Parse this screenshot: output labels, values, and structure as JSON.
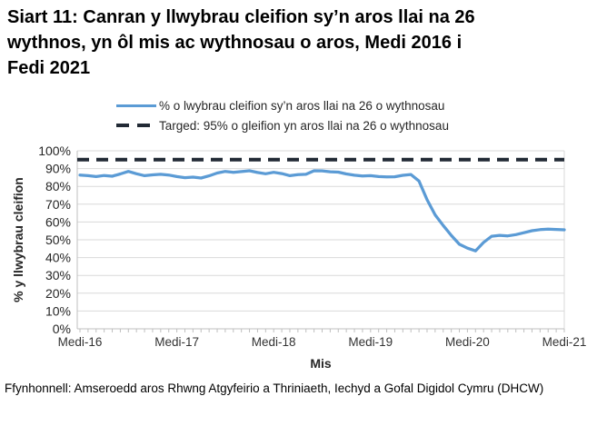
{
  "title_lines": [
    "Siart 11: Canran y llwybrau cleifion sy’n aros llai na 26",
    "wythnos, yn ôl mis ac wythnosau o aros, Medi 2016 i",
    "Fedi 2021"
  ],
  "legend": {
    "series_label": "% o lwybrau cleifion sy’n aros llai na 26 o wythnosau",
    "target_label": "Targed: 95% o gleifion yn aros llai na 26 o wythnosau"
  },
  "footer": "Ffynhonnell: Amseroedd aros Rhwng Atgyfeirio a Thriniaeth, Iechyd a Gofal Digidol Cymru (DHCW)",
  "colors": {
    "series": "#5B9BD5",
    "target": "#222a35",
    "grid": "#d9d9d9",
    "axis": "#bfbfbf",
    "title_text": "#000000"
  },
  "chart_data": {
    "type": "line",
    "title": "",
    "xlabel": "Mis",
    "ylabel": "% y llwybrau cleifion",
    "ylim": [
      0,
      100
    ],
    "grid": "horizontal",
    "legend_position": "top",
    "x_start": "Medi-16",
    "x_end": "Medi-21",
    "ytick_labels": [
      "0%",
      "10%",
      "20%",
      "30%",
      "40%",
      "50%",
      "60%",
      "70%",
      "80%",
      "90%",
      "100%"
    ],
    "xtick_labels": [
      "Medi-16",
      "Medi-17",
      "Medi-18",
      "Medi-19",
      "Medi-20",
      "Medi-21"
    ],
    "target": {
      "name": "Targed: 95% o gleifion yn aros llai na 26 o wythnosau",
      "value": 95
    },
    "series": [
      {
        "name": "% o lwybrau cleifion sy’n aros llai na 26 o wythnosau",
        "values": [
          86.4,
          86.0,
          85.5,
          86.1,
          85.7,
          87.0,
          88.4,
          87.1,
          86.0,
          86.5,
          86.8,
          86.4,
          85.5,
          84.9,
          85.2,
          84.7,
          85.9,
          87.5,
          88.4,
          87.9,
          88.3,
          88.8,
          87.8,
          87.1,
          87.9,
          87.2,
          86.0,
          86.6,
          86.8,
          88.8,
          88.7,
          88.2,
          88.0,
          87.0,
          86.3,
          85.8,
          86.0,
          85.5,
          85.3,
          85.4,
          86.2,
          86.7,
          83.0,
          72.5,
          64.0,
          58.0,
          52.5,
          47.5,
          45.3,
          43.8,
          48.5,
          52.0,
          52.5,
          52.2,
          52.9,
          54.0,
          55.1,
          55.7,
          56.0,
          55.8,
          55.6
        ]
      }
    ]
  }
}
